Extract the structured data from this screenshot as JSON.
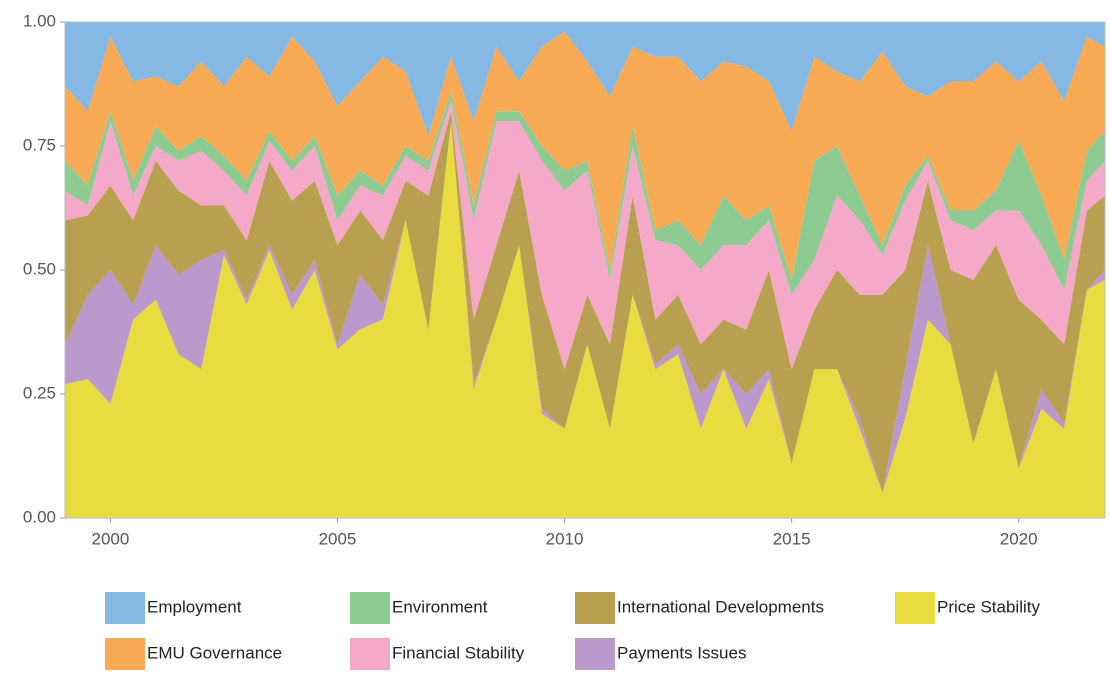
{
  "chart_data": {
    "type": "stacked_area",
    "x": [
      1999,
      1999.5,
      2000,
      2000.5,
      2001,
      2001.5,
      2002,
      2002.5,
      2003,
      2003.5,
      2004,
      2004.5,
      2005,
      2005.5,
      2006,
      2006.5,
      2007,
      2007.5,
      2008,
      2008.5,
      2009,
      2009.5,
      2010,
      2010.5,
      2011,
      2011.5,
      2012,
      2012.5,
      2013,
      2013.5,
      2014,
      2014.5,
      2015,
      2015.5,
      2016,
      2016.5,
      2017,
      2017.5,
      2018,
      2018.5,
      2019,
      2019.5,
      2020,
      2020.5,
      2021,
      2021.5,
      2021.9
    ],
    "series": [
      {
        "name": "Employment",
        "color": "#85b9e3",
        "values": [
          0.13,
          0.18,
          0.03,
          0.12,
          0.11,
          0.13,
          0.08,
          0.13,
          0.07,
          0.11,
          0.03,
          0.08,
          0.17,
          0.12,
          0.07,
          0.1,
          0.23,
          0.07,
          0.2,
          0.05,
          0.12,
          0.05,
          0.02,
          0.08,
          0.15,
          0.05,
          0.07,
          0.07,
          0.12,
          0.08,
          0.09,
          0.12,
          0.22,
          0.07,
          0.1,
          0.12,
          0.06,
          0.13,
          0.15,
          0.12,
          0.12,
          0.08,
          0.12,
          0.08,
          0.16,
          0.03,
          0.05
        ]
      },
      {
        "name": "EMU Governance",
        "color": "#f9aa55",
        "values": [
          0.15,
          0.15,
          0.15,
          0.2,
          0.1,
          0.13,
          0.15,
          0.14,
          0.25,
          0.11,
          0.25,
          0.15,
          0.18,
          0.18,
          0.26,
          0.15,
          0.05,
          0.07,
          0.17,
          0.13,
          0.06,
          0.2,
          0.28,
          0.2,
          0.35,
          0.16,
          0.35,
          0.33,
          0.33,
          0.27,
          0.31,
          0.25,
          0.3,
          0.21,
          0.15,
          0.23,
          0.39,
          0.2,
          0.12,
          0.26,
          0.26,
          0.26,
          0.12,
          0.27,
          0.32,
          0.23,
          0.17
        ]
      },
      {
        "name": "Environment",
        "color": "#8fcc93",
        "values": [
          0.06,
          0.04,
          0.02,
          0.03,
          0.04,
          0.02,
          0.03,
          0.03,
          0.03,
          0.02,
          0.02,
          0.02,
          0.05,
          0.03,
          0.02,
          0.02,
          0.02,
          0.02,
          0.03,
          0.02,
          0.02,
          0.03,
          0.04,
          0.02,
          0.02,
          0.04,
          0.02,
          0.05,
          0.05,
          0.1,
          0.05,
          0.03,
          0.03,
          0.2,
          0.1,
          0.05,
          0.02,
          0.03,
          0.01,
          0.02,
          0.04,
          0.04,
          0.14,
          0.1,
          0.06,
          0.06,
          0.06
        ]
      },
      {
        "name": "Financial Stability",
        "color": "#f5a9c8",
        "values": [
          0.06,
          0.02,
          0.13,
          0.05,
          0.03,
          0.06,
          0.11,
          0.07,
          0.09,
          0.04,
          0.06,
          0.07,
          0.05,
          0.05,
          0.09,
          0.05,
          0.05,
          0.02,
          0.2,
          0.25,
          0.1,
          0.27,
          0.36,
          0.25,
          0.13,
          0.1,
          0.16,
          0.1,
          0.15,
          0.15,
          0.17,
          0.1,
          0.15,
          0.1,
          0.15,
          0.15,
          0.08,
          0.14,
          0.04,
          0.1,
          0.1,
          0.07,
          0.18,
          0.15,
          0.11,
          0.06,
          0.07
        ]
      },
      {
        "name": "International Developments",
        "color": "#b8a050",
        "values": [
          0.25,
          0.16,
          0.17,
          0.17,
          0.17,
          0.17,
          0.11,
          0.09,
          0.12,
          0.17,
          0.19,
          0.16,
          0.2,
          0.13,
          0.13,
          0.08,
          0.27,
          0.02,
          0.13,
          0.15,
          0.15,
          0.23,
          0.12,
          0.1,
          0.17,
          0.2,
          0.09,
          0.1,
          0.1,
          0.1,
          0.13,
          0.2,
          0.19,
          0.12,
          0.2,
          0.25,
          0.4,
          0.2,
          0.13,
          0.15,
          0.33,
          0.25,
          0.34,
          0.14,
          0.16,
          0.16,
          0.15
        ]
      },
      {
        "name": "Payments Issues",
        "color": "#bb99cc",
        "values": [
          0.08,
          0.17,
          0.27,
          0.03,
          0.11,
          0.16,
          0.22,
          0.01,
          0.01,
          0.01,
          0.03,
          0.02,
          0.01,
          0.11,
          0.03,
          0,
          0,
          0,
          0.01,
          0,
          0,
          0.01,
          0,
          0,
          0,
          0,
          0.01,
          0.02,
          0.07,
          0,
          0.07,
          0.02,
          0,
          0,
          0,
          0.02,
          0,
          0.1,
          0.15,
          0,
          0,
          0,
          0,
          0.04,
          0.01,
          0,
          0.02
        ]
      },
      {
        "name": "Price Stability",
        "color": "#e8dc40",
        "values": [
          0.27,
          0.28,
          0.23,
          0.4,
          0.44,
          0.33,
          0.3,
          0.53,
          0.43,
          0.54,
          0.42,
          0.5,
          0.34,
          0.38,
          0.4,
          0.6,
          0.38,
          0.8,
          0.26,
          0.4,
          0.55,
          0.21,
          0.18,
          0.35,
          0.18,
          0.45,
          0.3,
          0.33,
          0.18,
          0.3,
          0.18,
          0.28,
          0.11,
          0.3,
          0.3,
          0.18,
          0.05,
          0.2,
          0.4,
          0.35,
          0.15,
          0.3,
          0.1,
          0.22,
          0.18,
          0.46,
          0.48
        ]
      }
    ],
    "xlim": [
      1999,
      2021.9
    ],
    "xticks": [
      2000,
      2005,
      2010,
      2015,
      2020
    ],
    "ylim": [
      0,
      1
    ],
    "yticks": [
      {
        "value": 0,
        "label": "0.00"
      },
      {
        "value": 0.25,
        "label": "0.25"
      },
      {
        "value": 0.5,
        "label": "0.50"
      },
      {
        "value": 0.75,
        "label": "0.75"
      },
      {
        "value": 1,
        "label": "1.00"
      }
    ]
  }
}
